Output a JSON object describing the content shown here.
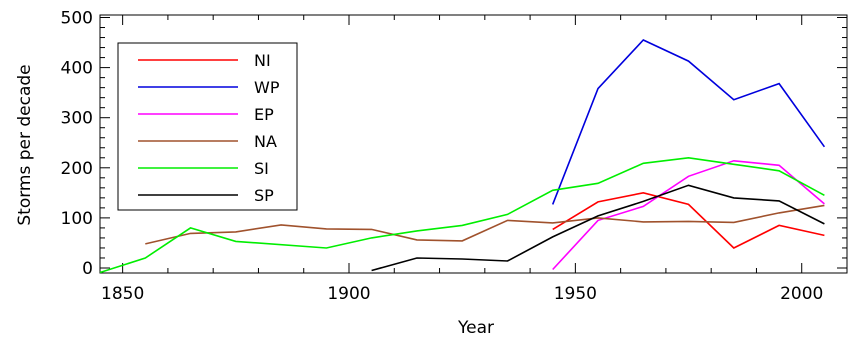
{
  "chart_data": {
    "type": "line",
    "title": "",
    "xlabel": "Year",
    "ylabel": "Storms per decade",
    "xlim": [
      1845,
      2010
    ],
    "ylim": [
      -10,
      505
    ],
    "xticks": [
      1850,
      1900,
      1950,
      2000
    ],
    "yticks": [
      0,
      100,
      200,
      300,
      400,
      500
    ],
    "legend_position": "top-left",
    "grid": false,
    "series": [
      {
        "name": "NI",
        "color": "#ff0000",
        "x": [
          1945,
          1955,
          1965,
          1975,
          1985,
          1995,
          2005
        ],
        "y": [
          77,
          132,
          150,
          127,
          40,
          85,
          65
        ]
      },
      {
        "name": "WP",
        "color": "#0000dd",
        "x": [
          1945,
          1955,
          1965,
          1975,
          1985,
          1995,
          2005
        ],
        "y": [
          127,
          358,
          455,
          413,
          336,
          368,
          242
        ]
      },
      {
        "name": "EP",
        "color": "#ff00ff",
        "x": [
          1945,
          1955,
          1965,
          1975,
          1985,
          1995,
          2005
        ],
        "y": [
          -3,
          95,
          123,
          183,
          214,
          205,
          128
        ]
      },
      {
        "name": "NA",
        "color": "#a0522d",
        "x": [
          1855,
          1865,
          1875,
          1885,
          1895,
          1905,
          1915,
          1925,
          1935,
          1945,
          1955,
          1965,
          1975,
          1985,
          1995,
          2005
        ],
        "y": [
          48,
          69,
          72,
          86,
          78,
          77,
          56,
          54,
          95,
          90,
          100,
          92,
          93,
          91,
          110,
          125
        ]
      },
      {
        "name": "SI",
        "color": "#00ee00",
        "x": [
          1845,
          1855,
          1865,
          1875,
          1895,
          1905,
          1915,
          1925,
          1935,
          1945,
          1955,
          1965,
          1975,
          1985,
          1995,
          2005
        ],
        "y": [
          -9,
          20,
          80,
          53,
          40,
          60,
          74,
          85,
          107,
          155,
          169,
          209,
          220,
          207,
          194,
          145
        ]
      },
      {
        "name": "SP",
        "color": "#000000",
        "x": [
          1905,
          1915,
          1925,
          1935,
          1945,
          1955,
          1965,
          1975,
          1985,
          1995,
          2005
        ],
        "y": [
          -5,
          20,
          18,
          14,
          62,
          104,
          133,
          165,
          140,
          134,
          88
        ]
      }
    ]
  }
}
